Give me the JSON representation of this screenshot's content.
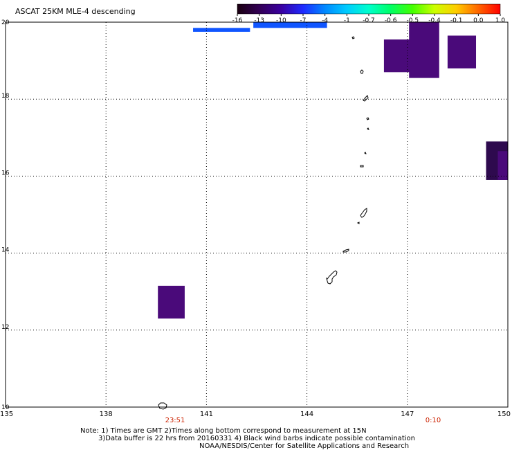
{
  "title": "ASCAT 25KM MLE-4 descending",
  "colorbar": {
    "tick_labels": [
      "-16",
      "-13",
      "-10",
      "-7",
      "-4",
      "-1",
      "-0.7",
      "-0.6",
      "-0.5",
      "-0.4",
      "-0.1",
      "0.0",
      "1.0"
    ],
    "colors": [
      "#1a0010",
      "#330055",
      "#3a00a0",
      "#1e2aff",
      "#0088ff",
      "#00ccff",
      "#00ffcc",
      "#00ff66",
      "#44ff00",
      "#ccff00",
      "#ffcc00",
      "#ff6600",
      "#ff0000"
    ]
  },
  "axes": {
    "lon_labels": [
      "135",
      "138",
      "141",
      "144",
      "147",
      "150"
    ],
    "lat_labels": [
      "20",
      "18",
      "16",
      "14",
      "12",
      "10"
    ]
  },
  "times": {
    "start": "23:51",
    "end": "0:10",
    "color": "#cc2200"
  },
  "notes": {
    "line1": "Note: 1) Times are GMT 2)Times along bottom correspond to measurement at 15N",
    "line2": "3)Data buffer is 22 hrs from 20160331 4) Black wind barbs indicate possible contamination",
    "line3": "NOAA/NESDIS/Center for Satellite Applications and Research"
  },
  "data_cells": [
    {
      "lon": [
        140.6,
        142.3
      ],
      "lat": [
        19.85,
        19.75
      ],
      "color": "#1055ff"
    },
    {
      "lon": [
        142.4,
        144.6
      ],
      "lat": [
        20.0,
        19.85
      ],
      "color": "#1055ff"
    },
    {
      "lon": [
        146.3,
        147.3
      ],
      "lat": [
        19.55,
        18.7
      ],
      "color": "#4a0a7a"
    },
    {
      "lon": [
        147.05,
        147.95
      ],
      "lat": [
        20.0,
        18.55
      ],
      "color": "#4a0a7a"
    },
    {
      "lon": [
        148.2,
        149.05
      ],
      "lat": [
        19.65,
        18.8
      ],
      "color": "#4a0a7a"
    },
    {
      "lon": [
        149.35,
        150.0
      ],
      "lat": [
        16.9,
        15.9
      ],
      "color": "#2e0a4e"
    },
    {
      "lon": [
        149.7,
        150.0
      ],
      "lat": [
        16.65,
        15.9
      ],
      "color": "#4a0a7a"
    },
    {
      "lon": [
        139.55,
        140.35
      ],
      "lat": [
        13.15,
        12.3
      ],
      "color": "#4a0a7a"
    }
  ]
}
